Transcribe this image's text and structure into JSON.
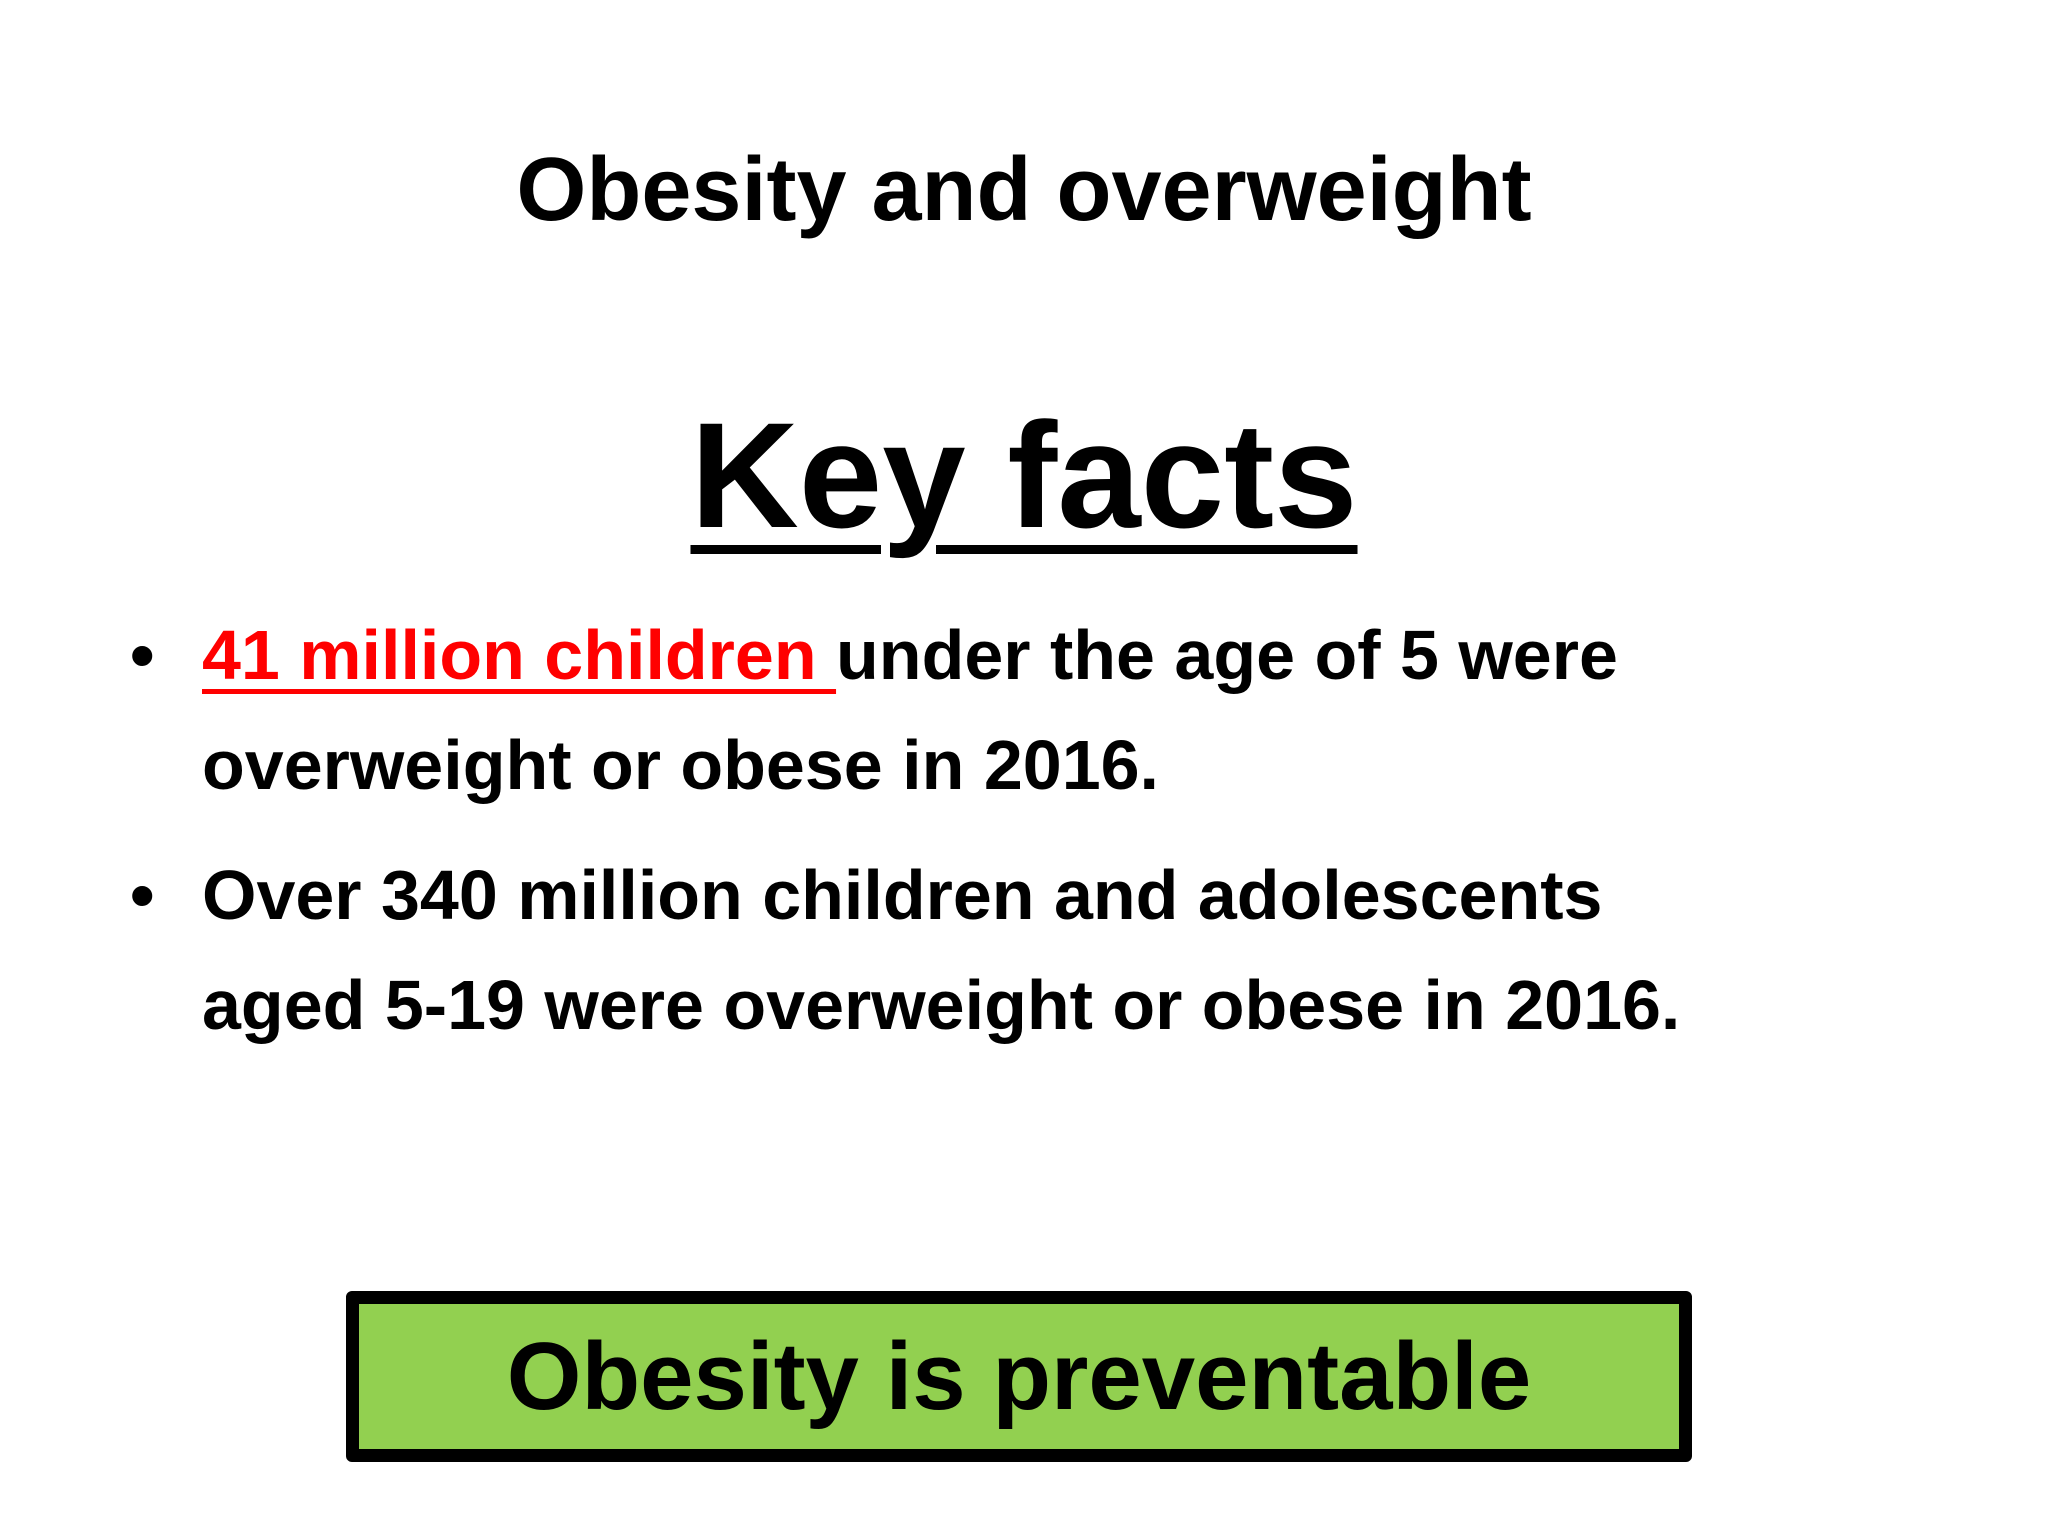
{
  "title": "Obesity and overweight",
  "subtitle": "Key facts",
  "bullets": [
    {
      "lines": [
        {
          "highlight": "41 million children ",
          "rest": "under the age of 5 were"
        },
        {
          "rest": "overweight or obese in 2016."
        }
      ]
    },
    {
      "lines": [
        {
          "rest": "Over 340 million children and adolescents"
        },
        {
          "rest": "aged 5-19 were overweight or obese in 2016."
        }
      ]
    }
  ],
  "callout": "Obesity is preventable"
}
